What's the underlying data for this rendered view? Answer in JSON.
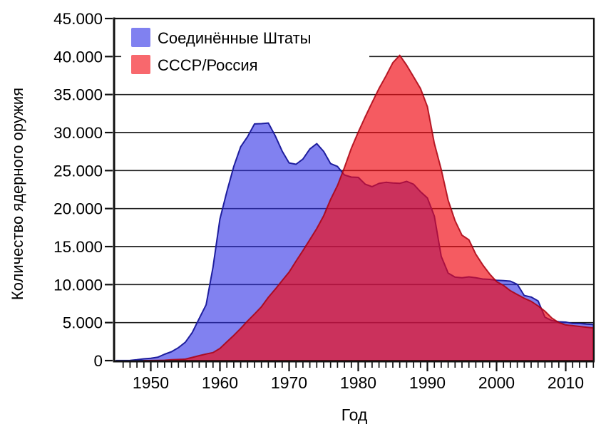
{
  "chart_data": {
    "type": "area",
    "title": "",
    "xlabel": "Год",
    "ylabel": "Количество ядерного оружия",
    "xlim": [
      1945,
      2014
    ],
    "ylim": [
      0,
      45000
    ],
    "grid": "horizontal",
    "legend_position": "top-left",
    "frame_color": "#111111",
    "gridline_color": "#1c1c1c",
    "y_ticks": [
      {
        "value": 0,
        "label": "0"
      },
      {
        "value": 5000,
        "label": "5.000"
      },
      {
        "value": 10000,
        "label": "10.000"
      },
      {
        "value": 15000,
        "label": "15.000"
      },
      {
        "value": 20000,
        "label": "20.000"
      },
      {
        "value": 25000,
        "label": "25.000"
      },
      {
        "value": 30000,
        "label": "30.000"
      },
      {
        "value": 35000,
        "label": "35.000"
      },
      {
        "value": 40000,
        "label": "40.000"
      },
      {
        "value": 45000,
        "label": "45.000"
      }
    ],
    "x_major_ticks": [
      1950,
      1960,
      1970,
      1980,
      1990,
      2000,
      2010
    ],
    "x_minor_tick_interval": 1,
    "series": [
      {
        "name": "Соединённые Штаты",
        "legend_color": "#8081f0",
        "fill": "rgba(45,45,230,0.60)",
        "stroke": "#1e1e9e",
        "x": [
          1945,
          1946,
          1947,
          1948,
          1949,
          1950,
          1951,
          1952,
          1953,
          1954,
          1955,
          1956,
          1957,
          1958,
          1959,
          1960,
          1961,
          1962,
          1963,
          1964,
          1965,
          1966,
          1967,
          1968,
          1969,
          1970,
          1971,
          1972,
          1973,
          1974,
          1975,
          1976,
          1977,
          1978,
          1979,
          1980,
          1981,
          1982,
          1983,
          1984,
          1985,
          1986,
          1987,
          1988,
          1989,
          1990,
          1991,
          1992,
          1993,
          1994,
          1995,
          1996,
          1997,
          1998,
          1999,
          2000,
          2001,
          2002,
          2003,
          2004,
          2005,
          2006,
          2007,
          2008,
          2009,
          2010,
          2011,
          2012,
          2013,
          2014
        ],
        "values": [
          6,
          11,
          32,
          110,
          235,
          299,
          438,
          841,
          1169,
          1703,
          2422,
          3692,
          5543,
          7345,
          12298,
          18638,
          22229,
          25540,
          28133,
          29463,
          31139,
          31175,
          31255,
          29561,
          27552,
          26008,
          25830,
          26516,
          27835,
          28537,
          27519,
          25914,
          25542,
          24418,
          24138,
          24104,
          23208,
          22886,
          23305,
          23459,
          23368,
          23317,
          23575,
          23205,
          22217,
          21392,
          19008,
          13708,
          11511,
          10979,
          10904,
          11011,
          10903,
          10732,
          10685,
          10577,
          10526,
          10457,
          10027,
          8570,
          8360,
          7853,
          5709,
          5273,
          5113,
          5066,
          4897,
          4881,
          4804,
          4760
        ]
      },
      {
        "name": "СССР/Россия",
        "legend_color": "#f8686d",
        "fill": "rgba(240,10,20,0.67)",
        "stroke": "rgba(170,0,15,0.85)",
        "x": [
          1949,
          1950,
          1951,
          1952,
          1953,
          1954,
          1955,
          1956,
          1957,
          1958,
          1959,
          1960,
          1961,
          1962,
          1963,
          1964,
          1965,
          1966,
          1967,
          1968,
          1969,
          1970,
          1971,
          1972,
          1973,
          1974,
          1975,
          1976,
          1977,
          1978,
          1979,
          1980,
          1981,
          1982,
          1983,
          1984,
          1985,
          1986,
          1987,
          1988,
          1989,
          1990,
          1991,
          1992,
          1993,
          1994,
          1995,
          1996,
          1997,
          1998,
          1999,
          2000,
          2001,
          2002,
          2003,
          2004,
          2005,
          2006,
          2007,
          2008,
          2009,
          2010,
          2011,
          2012,
          2013,
          2014
        ],
        "values": [
          1,
          5,
          25,
          50,
          120,
          150,
          200,
          426,
          660,
          869,
          1060,
          1605,
          2471,
          3322,
          4238,
          5221,
          6129,
          7089,
          8339,
          9399,
          10538,
          11643,
          13092,
          14478,
          15915,
          17385,
          19055,
          21205,
          23044,
          25393,
          27935,
          30062,
          32049,
          33952,
          35804,
          37431,
          39197,
          40159,
          38859,
          37333,
          35805,
          33417,
          28595,
          25155,
          21100,
          18400,
          16500,
          15900,
          14000,
          12600,
          11400,
          10400,
          9900,
          9200,
          8700,
          8200,
          7800,
          7200,
          6500,
          5600,
          5000,
          4700,
          4600,
          4500,
          4400,
          4300
        ]
      }
    ]
  }
}
